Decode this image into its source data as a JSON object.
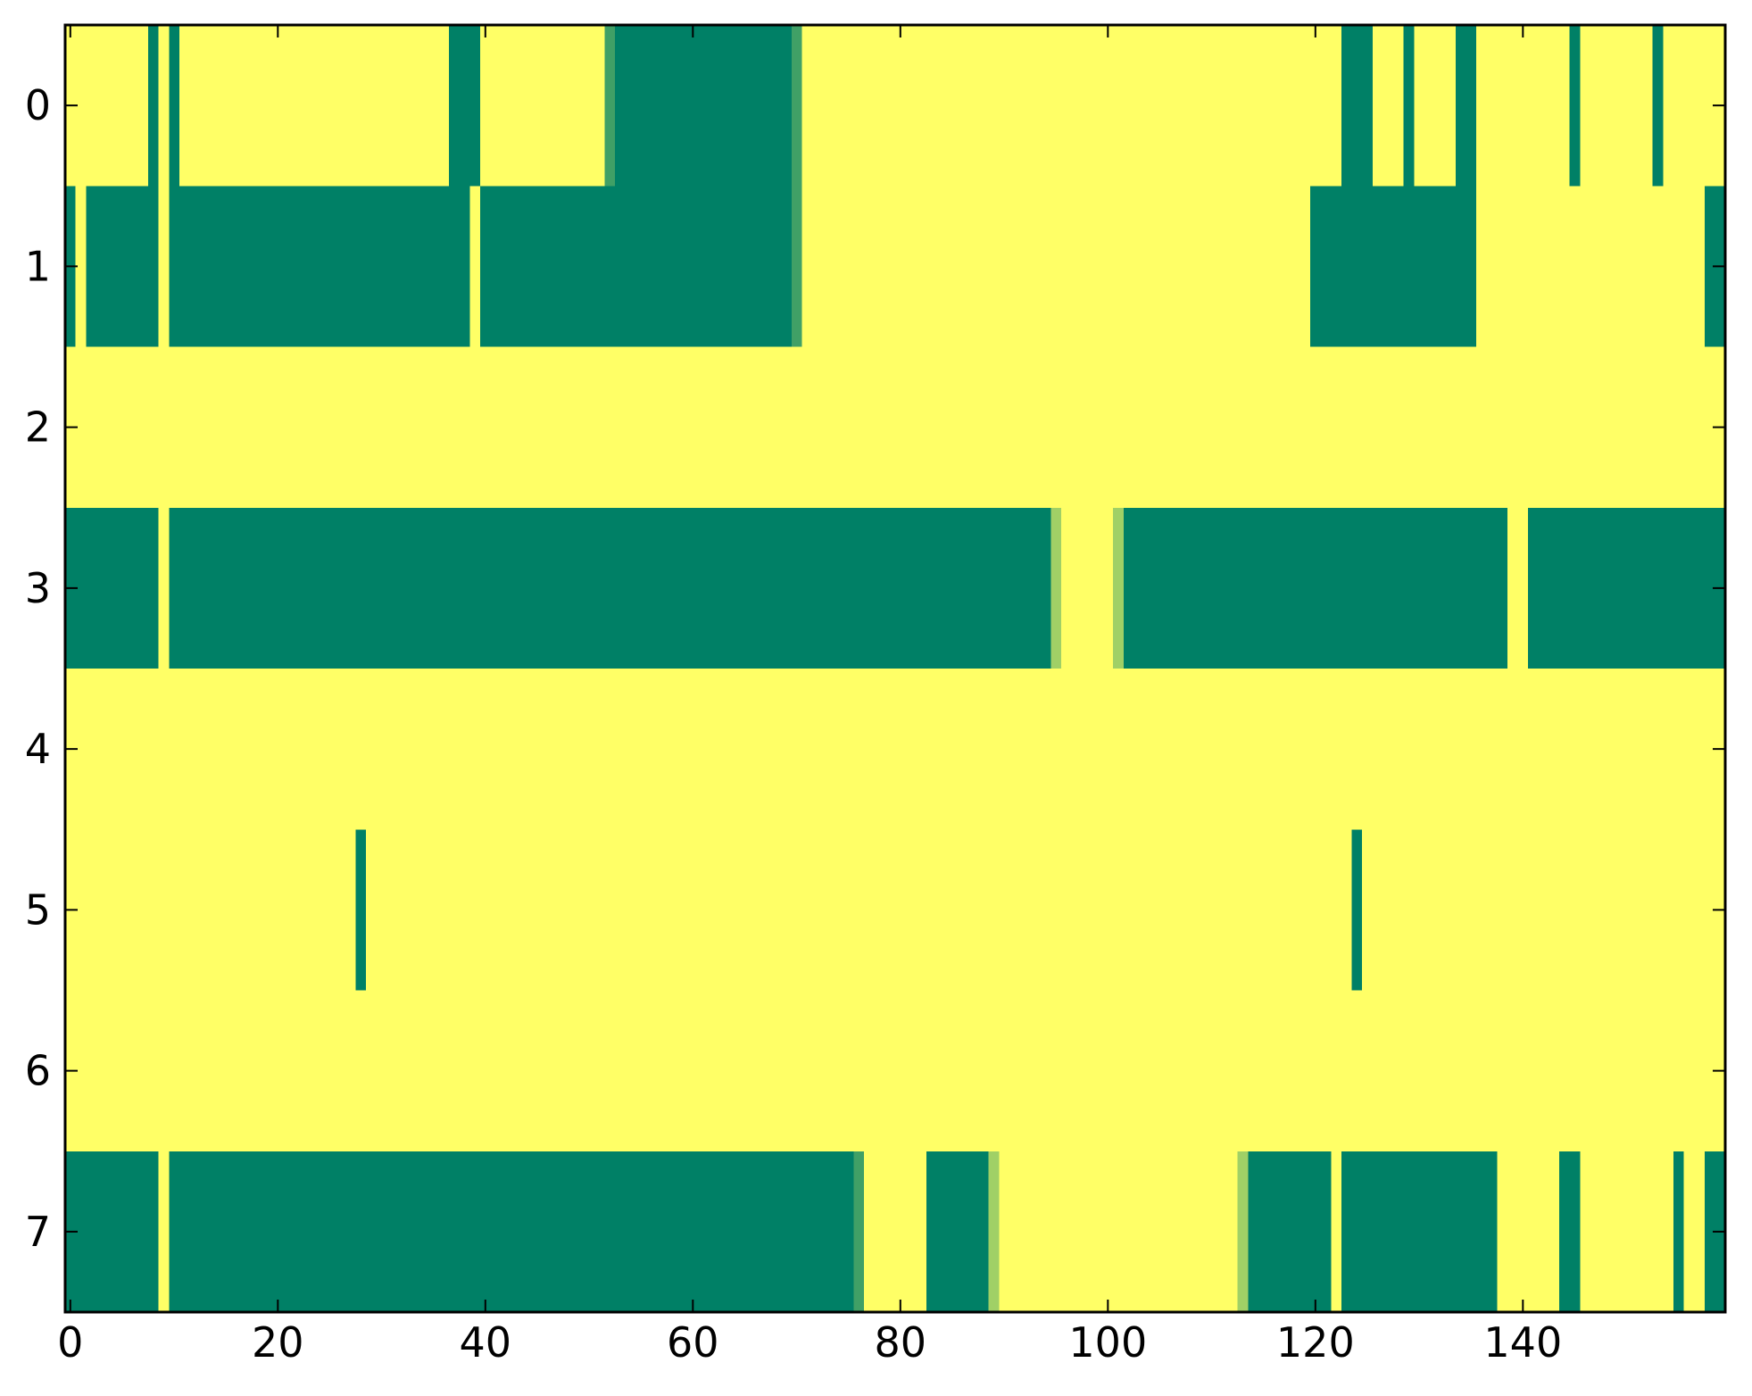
{
  "chart_data": {
    "type": "heatmap",
    "title": "",
    "xlabel": "",
    "ylabel": "",
    "x_range": [
      -0.5,
      159.5
    ],
    "y_range": [
      -0.5,
      7.5
    ],
    "x_ticks": [
      0,
      20,
      40,
      60,
      80,
      100,
      120,
      140
    ],
    "y_ticks": [
      0,
      1,
      2,
      3,
      4,
      5,
      6,
      7
    ],
    "n_rows": 8,
    "n_cols": 160,
    "grid": false,
    "colormap": "summer",
    "colors": {
      "low": "#008066",
      "mid_low": "#40a066",
      "mid_high": "#a0d066",
      "high": "#ffff66"
    },
    "value_range": [
      0,
      1
    ],
    "background_value": 1,
    "rows": [
      {
        "row": 0,
        "segments": [
          {
            "start": 8,
            "end": 8,
            "value": 0
          },
          {
            "start": 10,
            "end": 10,
            "value": 0
          },
          {
            "start": 37,
            "end": 39,
            "value": 0
          },
          {
            "start": 52,
            "end": 52,
            "value": 0.25
          },
          {
            "start": 53,
            "end": 69,
            "value": 0
          },
          {
            "start": 70,
            "end": 70,
            "value": 0.25
          },
          {
            "start": 123,
            "end": 125,
            "value": 0
          },
          {
            "start": 129,
            "end": 129,
            "value": 0
          },
          {
            "start": 134,
            "end": 135,
            "value": 0
          },
          {
            "start": 145,
            "end": 145,
            "value": 0
          },
          {
            "start": 153,
            "end": 153,
            "value": 0
          }
        ]
      },
      {
        "row": 1,
        "segments": [
          {
            "start": 0,
            "end": 0,
            "value": 0
          },
          {
            "start": 2,
            "end": 8,
            "value": 0
          },
          {
            "start": 10,
            "end": 38,
            "value": 0
          },
          {
            "start": 40,
            "end": 69,
            "value": 0
          },
          {
            "start": 70,
            "end": 70,
            "value": 0.25
          },
          {
            "start": 120,
            "end": 135,
            "value": 0
          },
          {
            "start": 158,
            "end": 159,
            "value": 0
          }
        ]
      },
      {
        "row": 2,
        "segments": []
      },
      {
        "row": 3,
        "segments": [
          {
            "start": 0,
            "end": 8,
            "value": 0
          },
          {
            "start": 10,
            "end": 94,
            "value": 0
          },
          {
            "start": 95,
            "end": 95,
            "value": 0.5
          },
          {
            "start": 101,
            "end": 101,
            "value": 0.5
          },
          {
            "start": 102,
            "end": 138,
            "value": 0
          },
          {
            "start": 141,
            "end": 159,
            "value": 0
          }
        ]
      },
      {
        "row": 4,
        "segments": []
      },
      {
        "row": 5,
        "segments": [
          {
            "start": 28,
            "end": 28,
            "value": 0
          },
          {
            "start": 124,
            "end": 124,
            "value": 0
          }
        ]
      },
      {
        "row": 6,
        "segments": []
      },
      {
        "row": 7,
        "segments": [
          {
            "start": 0,
            "end": 8,
            "value": 0
          },
          {
            "start": 10,
            "end": 75,
            "value": 0
          },
          {
            "start": 76,
            "end": 76,
            "value": 0.25
          },
          {
            "start": 83,
            "end": 88,
            "value": 0
          },
          {
            "start": 89,
            "end": 89,
            "value": 0.75
          },
          {
            "start": 113,
            "end": 113,
            "value": 0.75
          },
          {
            "start": 114,
            "end": 121,
            "value": 0
          },
          {
            "start": 123,
            "end": 137,
            "value": 0
          },
          {
            "start": 144,
            "end": 145,
            "value": 0
          },
          {
            "start": 155,
            "end": 155,
            "value": 0
          },
          {
            "start": 158,
            "end": 159,
            "value": 0
          }
        ]
      }
    ]
  }
}
